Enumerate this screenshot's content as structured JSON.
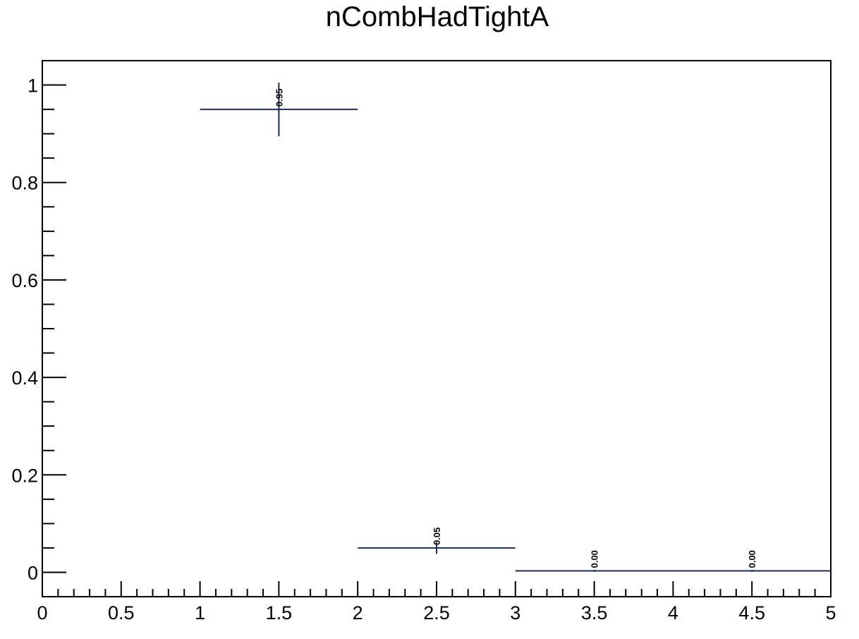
{
  "chart_data": {
    "type": "scatter",
    "title": "nCombHadTightA",
    "xlabel": "",
    "ylabel": "",
    "xlim": [
      0,
      5
    ],
    "ylim": [
      -0.05,
      1.05
    ],
    "grid": false,
    "x_ticks": [
      0,
      0.5,
      1,
      1.5,
      2,
      2.5,
      3,
      3.5,
      4,
      4.5,
      5
    ],
    "x_tick_labels": [
      "0",
      "0.5",
      "1",
      "1.5",
      "2",
      "2.5",
      "3",
      "3.5",
      "4",
      "4.5",
      "5"
    ],
    "y_ticks": [
      0,
      0.2,
      0.4,
      0.6,
      0.8,
      1
    ],
    "y_tick_labels": [
      "0",
      "0.2",
      "0.4",
      "0.6",
      "0.8",
      "1"
    ],
    "series": [
      {
        "color": "#1f2a5c",
        "points": [
          {
            "x": 1.5,
            "xerr": 0.5,
            "y": 0.95,
            "yerr": 0.055,
            "label": "0.95"
          },
          {
            "x": 2.5,
            "xerr": 0.5,
            "y": 0.05,
            "yerr": 0.012,
            "label": "0.05"
          },
          {
            "x": 3.5,
            "xerr": 0.5,
            "y": 0.003,
            "yerr": 0.002,
            "label": "0.00"
          },
          {
            "x": 4.5,
            "xerr": 0.5,
            "y": 0.003,
            "yerr": 0.002,
            "label": "0.00"
          }
        ]
      }
    ]
  }
}
